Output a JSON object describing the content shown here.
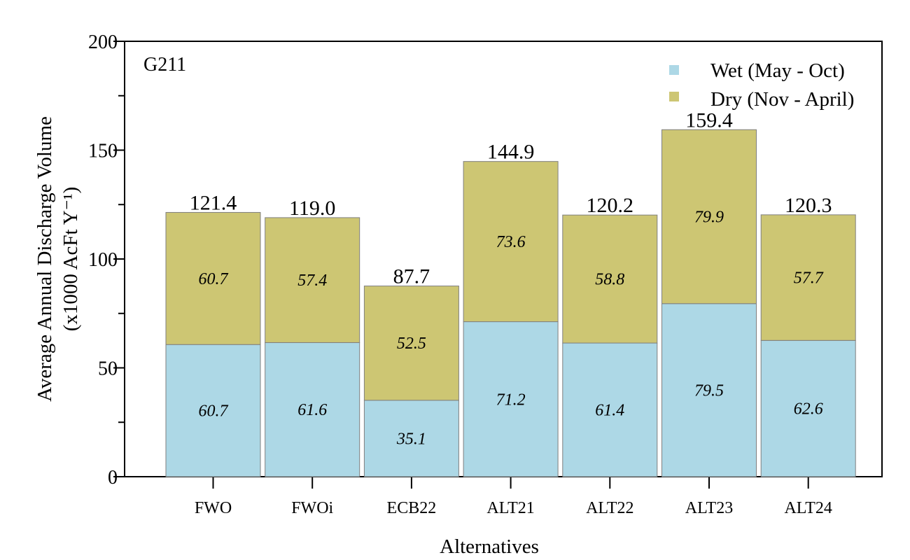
{
  "chart_data": {
    "type": "bar",
    "stacked": true,
    "panel_label": "G211",
    "categories": [
      "FWO",
      "FWOi",
      "ECB22",
      "ALT21",
      "ALT22",
      "ALT23",
      "ALT24"
    ],
    "series": [
      {
        "name": "Wet (May - Oct)",
        "color": "#add8e6",
        "values": [
          60.7,
          61.6,
          35.1,
          71.2,
          61.4,
          79.5,
          62.6
        ]
      },
      {
        "name": "Dry (Nov - April)",
        "color": "#cdc673",
        "values": [
          60.7,
          57.4,
          52.5,
          73.6,
          58.8,
          79.9,
          57.7
        ]
      }
    ],
    "totals": [
      "121.4",
      "119.0",
      "87.7",
      "144.9",
      "120.2",
      "159.4",
      "120.3"
    ],
    "xlabel": "Alternatives",
    "ylabel_line1": "Average Annual Discharge Volume",
    "ylabel_line2": "(x1000 AcFt Y⁻¹)",
    "ylim": [
      0,
      200
    ],
    "yticks": [
      0,
      50,
      100,
      150,
      200
    ],
    "grid": false,
    "legend_position": "top-right"
  }
}
